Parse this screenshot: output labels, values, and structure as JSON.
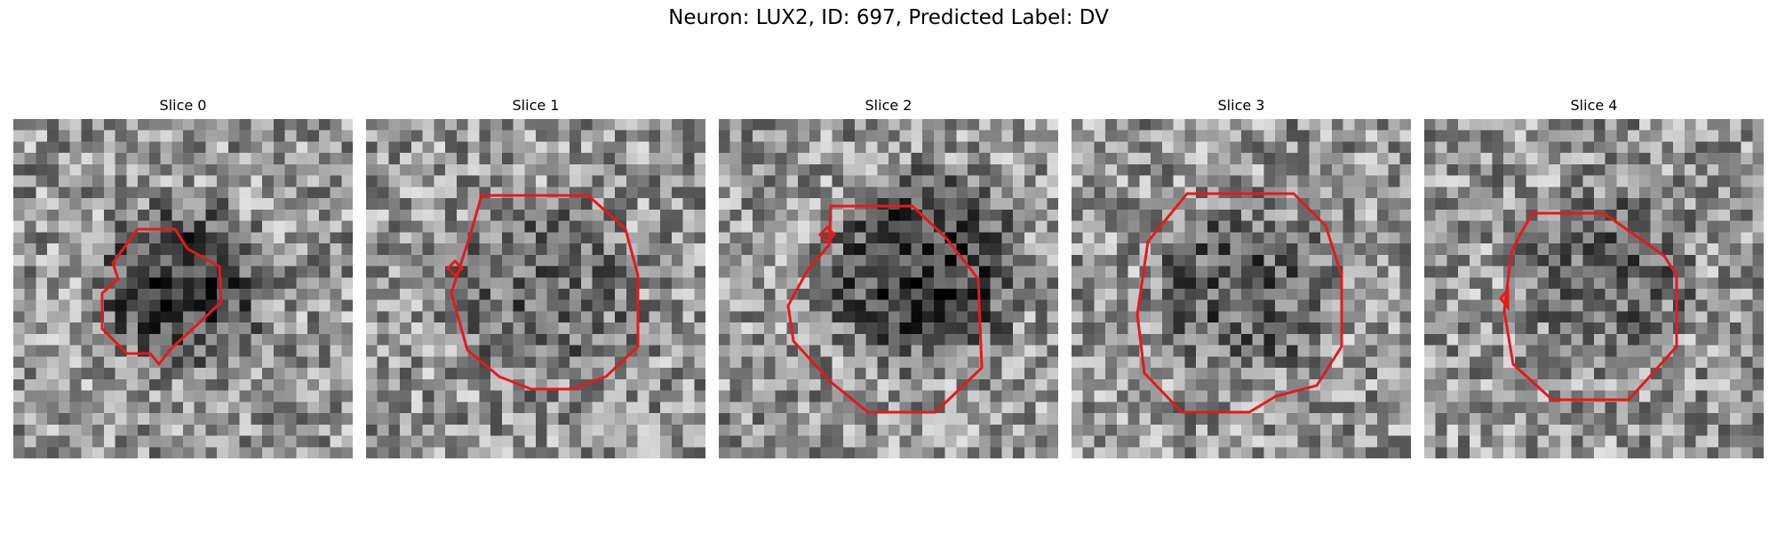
{
  "figure": {
    "title": "Neuron: LUX2, ID: 697, Predicted Label: DV"
  },
  "panels": [
    {
      "title": "Slice 0",
      "blob": [
        0.5,
        0.5,
        0.3,
        0.55
      ],
      "seed": 11
    },
    {
      "title": "Slice 1",
      "blob": [
        0.52,
        0.52,
        0.34,
        0.25
      ],
      "seed": 23
    },
    {
      "title": "Slice 2",
      "blob": [
        0.6,
        0.45,
        0.34,
        0.55
      ],
      "seed": 37
    },
    {
      "title": "Slice 3",
      "blob": [
        0.5,
        0.5,
        0.32,
        0.35
      ],
      "seed": 41
    },
    {
      "title": "Slice 4",
      "blob": [
        0.55,
        0.45,
        0.3,
        0.3
      ],
      "seed": 59
    }
  ],
  "colors": {
    "contour": "#e41a1c",
    "background": "#ffffff"
  }
}
